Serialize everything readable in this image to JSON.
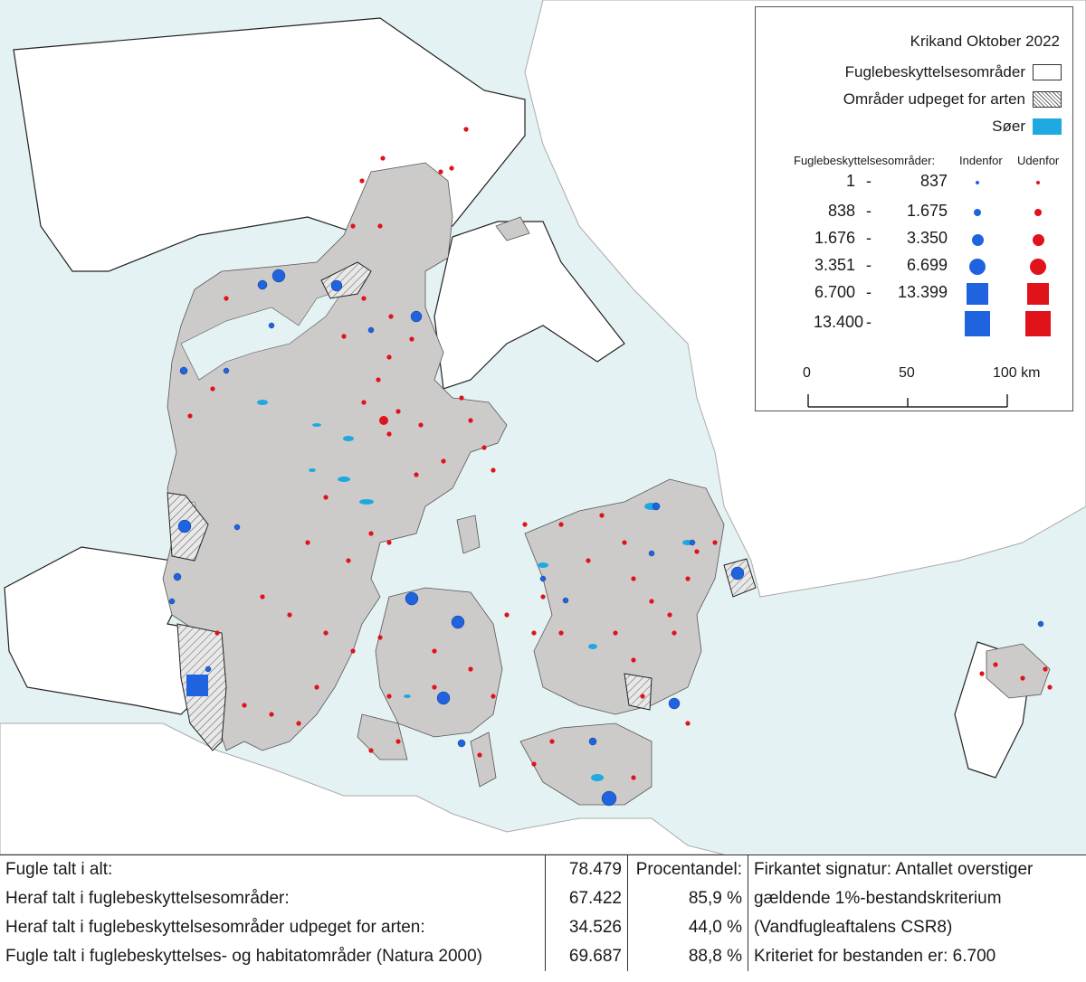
{
  "colors": {
    "sea": "#e5f2f3",
    "land": "#cccbc9",
    "lake": "#20a9e1",
    "inside": "#1f63df",
    "outside": "#e0121a",
    "outline": "#222222"
  },
  "legend": {
    "title": "Krikand Oktober 2022",
    "items": [
      {
        "label": "Fuglebeskyttelsesområder",
        "swatch": "white-box"
      },
      {
        "label": "Områder udpeget for arten",
        "swatch": "hatched-box"
      },
      {
        "label": "Søer",
        "swatch": "lake-box"
      }
    ],
    "size_header": {
      "label": "Fuglebeskyttelsesområder:",
      "inside": "Indenfor",
      "outside": "Udenfor"
    },
    "size_classes": [
      {
        "low": "1",
        "dash": "-",
        "high": "837",
        "symbol": "circle",
        "size": 1
      },
      {
        "low": "838",
        "dash": "-",
        "high": "1.675",
        "symbol": "circle",
        "size": 2
      },
      {
        "low": "1.676",
        "dash": "-",
        "high": "3.350",
        "symbol": "circle",
        "size": 3
      },
      {
        "low": "3.351",
        "dash": "-",
        "high": "6.699",
        "symbol": "circle",
        "size": 4
      },
      {
        "low": "6.700",
        "dash": "-",
        "high": "13.399",
        "symbol": "square",
        "size": 5
      },
      {
        "low": "13.400",
        "dash": "-",
        "high": "",
        "symbol": "square",
        "size": 6
      }
    ],
    "scale_bar": {
      "ticks": [
        "0",
        "50",
        "100 km"
      ]
    }
  },
  "stats": {
    "rows": [
      {
        "label": "Fugle talt i alt:",
        "value": "78.479",
        "pct": "Procentandel:",
        "note": "Firkantet signatur: Antallet overstiger"
      },
      {
        "label": "Heraf talt i fuglebeskyttelsesområder:",
        "value": "67.422",
        "pct": "85,9 %",
        "note": "gældende 1%-bestandskriterium"
      },
      {
        "label": "Heraf talt i fuglebeskyttelsesområder udpeget for arten:",
        "value": "34.526",
        "pct": "44,0 %",
        "note": "(Vandfugleaftalens CSR8)"
      },
      {
        "label": "Fugle talt i fuglebeskyttelses- og habitatområder (Natura 2000)",
        "value": "69.687",
        "pct": "88,8 %",
        "note": "Kriteriet for bestanden er: 6.700"
      }
    ]
  }
}
